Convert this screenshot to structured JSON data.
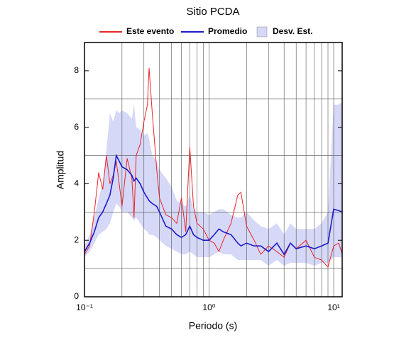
{
  "chart_data": {
    "type": "line",
    "title": "Sitio PCDA",
    "xlabel": "Periodo (s)",
    "ylabel": "Amplitud",
    "xscale": "log",
    "xlim": [
      0.1,
      11.7
    ],
    "ylim": [
      0,
      9
    ],
    "xticks": [
      {
        "value": 0.1,
        "label": "10⁻¹"
      },
      {
        "value": 1,
        "label": "10⁰"
      },
      {
        "value": 10,
        "label": "10¹"
      }
    ],
    "xgrid": [
      0.2,
      0.3,
      0.4,
      0.5,
      0.6,
      0.7,
      0.8,
      0.9,
      2,
      3,
      4,
      5,
      6,
      7,
      8,
      9
    ],
    "yticks": [
      0,
      2,
      4,
      6,
      8
    ],
    "ygrid": [
      1,
      3,
      5,
      7
    ],
    "grid": true,
    "x": [
      0.1,
      0.11,
      0.12,
      0.13,
      0.14,
      0.15,
      0.16,
      0.17,
      0.18,
      0.19,
      0.2,
      0.22,
      0.24,
      0.25,
      0.26,
      0.28,
      0.3,
      0.32,
      0.33,
      0.35,
      0.38,
      0.4,
      0.45,
      0.5,
      0.55,
      0.6,
      0.65,
      0.7,
      0.75,
      0.8,
      0.9,
      1.0,
      1.1,
      1.2,
      1.3,
      1.5,
      1.7,
      1.8,
      2.0,
      2.3,
      2.6,
      3.0,
      3.5,
      4.0,
      4.5,
      5.0,
      6.0,
      7.0,
      8.0,
      9.0,
      10,
      11,
      11.7
    ],
    "band": {
      "name": "Desv. Est.",
      "color": "#d6d8f7",
      "upper": [
        1.8,
        2.2,
        2.8,
        3.5,
        4.0,
        5.2,
        6.5,
        6.2,
        6.6,
        6.5,
        6.6,
        6.5,
        6.3,
        6.8,
        6.0,
        5.9,
        5.7,
        5.8,
        5.6,
        5.0,
        4.8,
        4.5,
        4.2,
        3.9,
        3.4,
        3.3,
        3.2,
        3.6,
        3.1,
        3.0,
        3.0,
        2.9,
        3.0,
        3.1,
        3.1,
        2.9,
        2.8,
        2.8,
        3.0,
        2.7,
        2.5,
        2.4,
        2.6,
        2.2,
        2.6,
        2.4,
        2.4,
        2.4,
        2.6,
        3.0,
        6.8,
        6.8,
        6.9
      ],
      "lower": [
        1.4,
        1.6,
        1.9,
        2.2,
        2.3,
        2.4,
        2.6,
        3.0,
        3.3,
        3.2,
        3.0,
        3.0,
        2.8,
        2.7,
        2.8,
        2.6,
        2.4,
        2.3,
        2.2,
        2.2,
        2.1,
        2.0,
        1.8,
        1.7,
        1.6,
        1.5,
        1.5,
        1.6,
        1.5,
        1.4,
        1.4,
        1.4,
        1.5,
        1.6,
        1.5,
        1.5,
        1.3,
        1.3,
        1.3,
        1.3,
        1.3,
        1.1,
        1.3,
        1.1,
        1.2,
        1.2,
        1.2,
        1.1,
        1.2,
        1.2,
        1.4,
        1.4,
        1.4
      ]
    },
    "series": [
      {
        "name": "Este evento",
        "color": "#e8262a",
        "values": [
          1.5,
          1.8,
          3.0,
          4.4,
          3.8,
          5.0,
          4.0,
          4.3,
          4.8,
          4.0,
          3.2,
          4.9,
          4.2,
          2.8,
          5.0,
          5.4,
          6.2,
          6.8,
          8.1,
          6.5,
          4.5,
          3.5,
          2.9,
          2.8,
          2.6,
          3.5,
          2.3,
          5.3,
          3.2,
          2.6,
          2.4,
          2.0,
          1.9,
          1.6,
          2.0,
          2.6,
          3.6,
          3.7,
          2.5,
          2.0,
          1.5,
          1.8,
          1.6,
          1.4,
          1.9,
          1.7,
          2.0,
          1.4,
          1.3,
          1.05,
          1.8,
          1.9,
          1.5
        ]
      },
      {
        "name": "Promedio",
        "color": "#1a1acc",
        "values": [
          1.6,
          1.9,
          2.3,
          2.8,
          3.0,
          3.3,
          3.6,
          4.2,
          5.0,
          4.8,
          4.6,
          4.5,
          4.3,
          4.1,
          4.2,
          4.0,
          3.7,
          3.5,
          3.4,
          3.3,
          3.2,
          3.0,
          2.5,
          2.4,
          2.2,
          2.1,
          2.2,
          2.5,
          2.2,
          2.1,
          2.0,
          2.0,
          2.2,
          2.4,
          2.3,
          2.2,
          1.9,
          1.8,
          1.9,
          1.8,
          1.8,
          1.6,
          1.9,
          1.5,
          1.9,
          1.7,
          1.8,
          1.7,
          1.8,
          1.9,
          3.1,
          3.05,
          3.0
        ]
      }
    ]
  }
}
